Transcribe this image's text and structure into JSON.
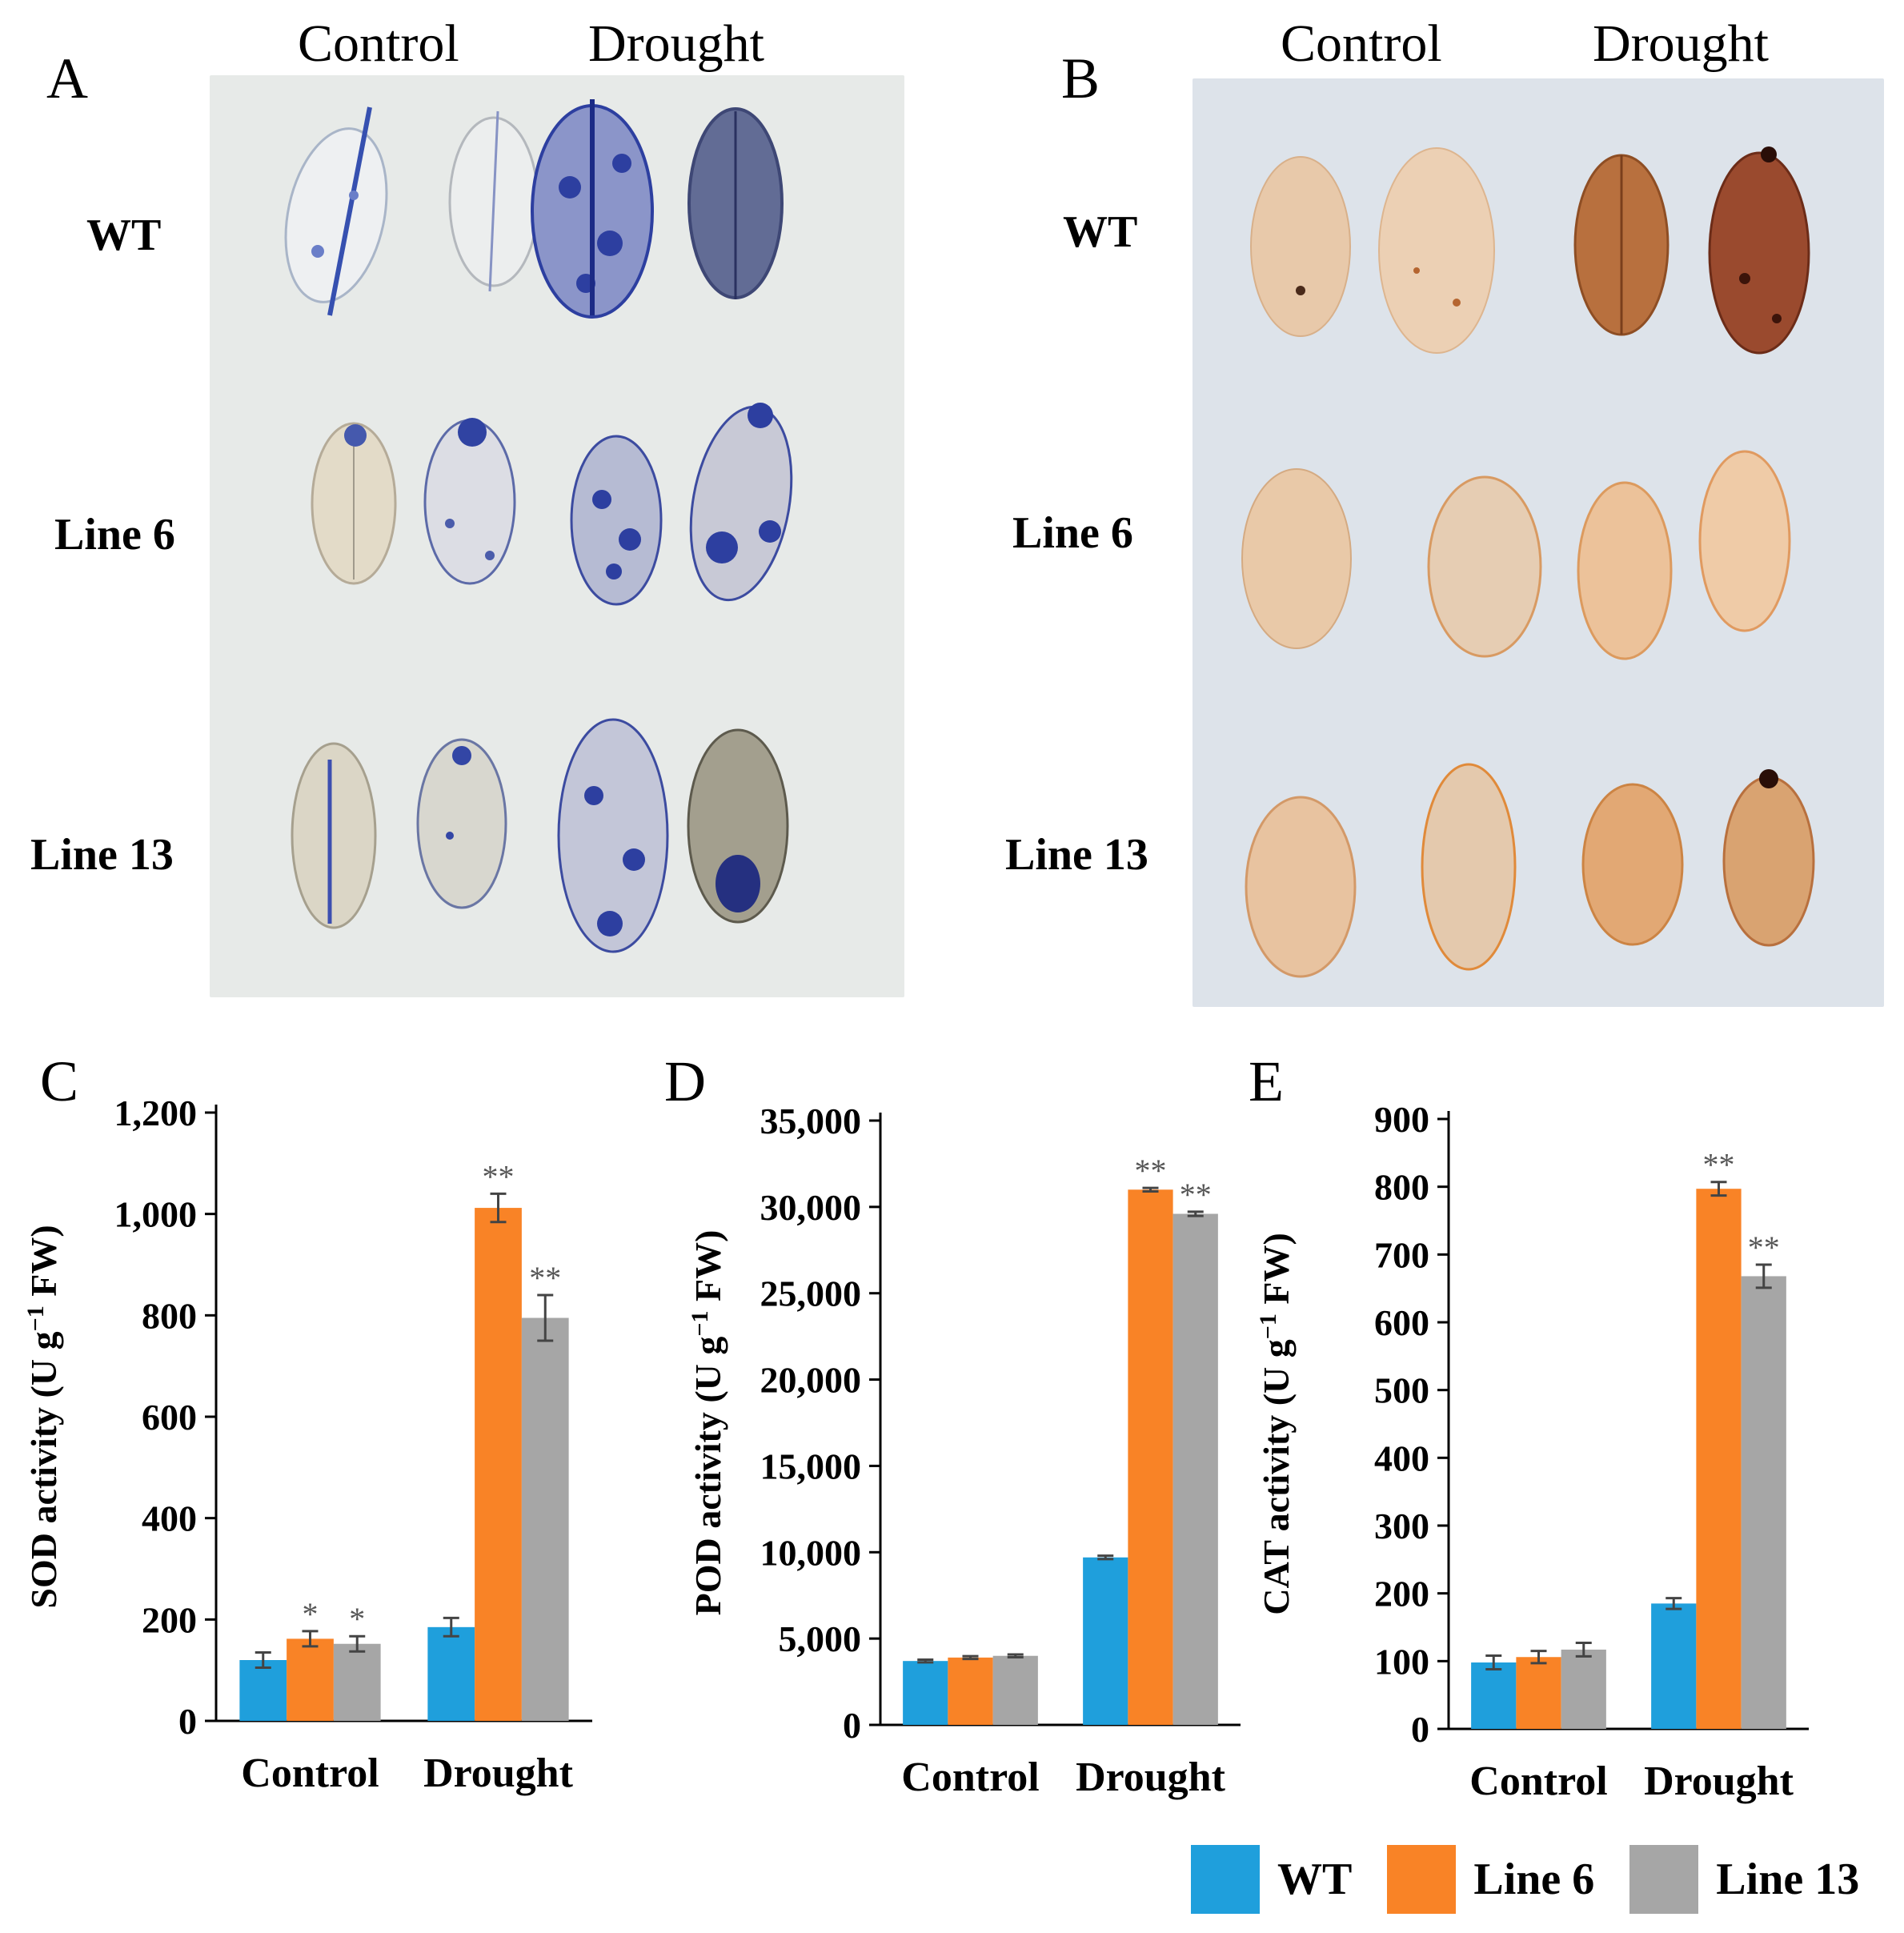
{
  "panel_a": {
    "letter": "A",
    "columns": [
      "Control",
      "Drought"
    ],
    "rows": [
      "WT",
      "Line 6",
      "Line 13"
    ]
  },
  "panel_b": {
    "letter": "B",
    "columns": [
      "Control",
      "Drought"
    ],
    "rows": [
      "WT",
      "Line 6",
      "Line 13"
    ]
  },
  "colors": {
    "WT": "#1f9fdc",
    "Line 6": "#f98326",
    "Line 13": "#a6a6a6",
    "stain_a": "#2d3fa0",
    "stain_b": "#b7653a"
  },
  "legend": [
    "WT",
    "Line 6",
    "Line 13"
  ],
  "chart_data": [
    {
      "letter": "C",
      "type": "bar",
      "categories": [
        "Control",
        "Drought"
      ],
      "series": [
        {
          "name": "WT",
          "values": [
            120,
            185
          ],
          "errors": [
            15,
            18
          ]
        },
        {
          "name": "Line 6",
          "values": [
            162,
            1012
          ],
          "errors": [
            15,
            28
          ]
        },
        {
          "name": "Line 13",
          "values": [
            152,
            795
          ],
          "errors": [
            15,
            45
          ]
        }
      ],
      "significance": [
        [
          "",
          "*",
          "*"
        ],
        [
          "",
          "**",
          "**"
        ]
      ],
      "ylabel_main": "SOD activity (U g",
      "ylabel_sup": "−1",
      "ylabel_tail": " FW)",
      "ylim": [
        0,
        1200
      ],
      "yticks": [
        0,
        200,
        400,
        600,
        800,
        1000,
        1200
      ],
      "ytick_labels": [
        "0",
        "200",
        "400",
        "600",
        "800",
        "1,000",
        "1,200"
      ]
    },
    {
      "letter": "D",
      "type": "bar",
      "categories": [
        "Control",
        "Drought"
      ],
      "series": [
        {
          "name": "WT",
          "values": [
            3700,
            9700
          ],
          "errors": [
            80,
            100
          ]
        },
        {
          "name": "Line 6",
          "values": [
            3900,
            31000
          ],
          "errors": [
            80,
            100
          ]
        },
        {
          "name": "Line 13",
          "values": [
            4000,
            29600
          ],
          "errors": [
            80,
            120
          ]
        }
      ],
      "significance": [
        [
          "",
          "",
          ""
        ],
        [
          "",
          "**",
          "**"
        ]
      ],
      "ylabel_main": "POD activity (U g",
      "ylabel_sup": "−1",
      "ylabel_tail": " FW)",
      "ylim": [
        0,
        35000
      ],
      "yticks": [
        0,
        5000,
        10000,
        15000,
        20000,
        25000,
        30000,
        35000
      ],
      "ytick_labels": [
        "0",
        "5,000",
        "10,000",
        "15,000",
        "20,000",
        "25,000",
        "30,000",
        "35,000"
      ]
    },
    {
      "letter": "E",
      "type": "bar",
      "categories": [
        "Control",
        "Drought"
      ],
      "series": [
        {
          "name": "WT",
          "values": [
            98,
            185
          ],
          "errors": [
            10,
            8
          ]
        },
        {
          "name": "Line 6",
          "values": [
            106,
            797
          ],
          "errors": [
            9,
            10
          ]
        },
        {
          "name": "Line 13",
          "values": [
            117,
            668
          ],
          "errors": [
            10,
            17
          ]
        }
      ],
      "significance": [
        [
          "",
          "",
          ""
        ],
        [
          "",
          "**",
          "**"
        ]
      ],
      "ylabel_main": "CAT activity (U g",
      "ylabel_sup": "−1",
      "ylabel_tail": " FW)",
      "ylim": [
        0,
        900
      ],
      "yticks": [
        0,
        100,
        200,
        300,
        400,
        500,
        600,
        700,
        800,
        900
      ],
      "ytick_labels": [
        "0",
        "100",
        "200",
        "300",
        "400",
        "500",
        "600",
        "700",
        "800",
        "900"
      ]
    }
  ]
}
